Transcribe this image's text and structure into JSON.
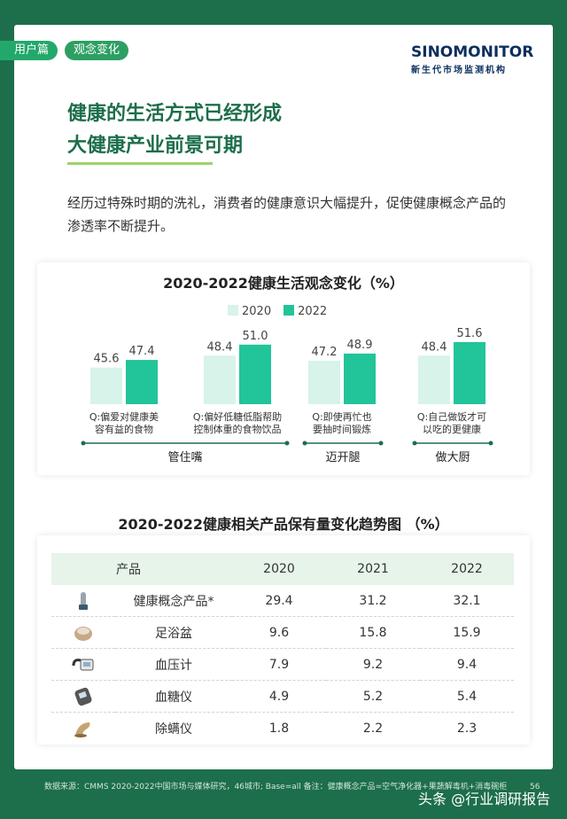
{
  "tags": [
    "用户篇",
    "观念变化"
  ],
  "logo": {
    "name": "SINOMONITOR",
    "subtitle": "新生代市场监测机构"
  },
  "title": {
    "line1": "健康的生活方式已经形成",
    "line2": "大健康产业前景可期"
  },
  "intro": "经历过特殊时期的洗礼，消费者的健康意识大幅提升，促使健康概念产品的渗透率不断提升。",
  "chart_data": {
    "type": "bar",
    "title": "2020-2022健康生活观念变化（%）",
    "categories": [
      "Q:偏爱对健康美容有益的食物",
      "Q:偏好低糖低脂帮助控制体重的食物饮品",
      "Q:即使再忙也要抽时间锻炼",
      "Q:自己做饭才可以吃的更健康"
    ],
    "category_lines": [
      [
        "Q:偏爱对健康美",
        "容有益的食物"
      ],
      [
        "Q:偏好低糖低脂帮助",
        "控制体重的食物饮品"
      ],
      [
        "Q:即使再忙也",
        "要抽时间锻炼"
      ],
      [
        "Q:自己做饭才可",
        "以吃的更健康"
      ]
    ],
    "series": [
      {
        "name": "2020",
        "values": [
          45.6,
          48.4,
          47.2,
          48.4
        ],
        "color": "#d7f3ea"
      },
      {
        "name": "2022",
        "values": [
          47.4,
          51.0,
          48.9,
          51.6
        ],
        "color": "#22c49a"
      }
    ],
    "value_labels": [
      [
        "45.6",
        "48.4",
        "47.2",
        "48.4"
      ],
      [
        "47.4",
        "51.0",
        "48.9",
        "51.6"
      ]
    ],
    "groups": [
      {
        "label": "管住嘴",
        "span": [
          0,
          1
        ]
      },
      {
        "label": "迈开腿",
        "span": [
          2,
          2
        ]
      },
      {
        "label": "做大厨",
        "span": [
          3,
          3
        ]
      }
    ]
  },
  "table": {
    "title": "2020-2022健康相关产品保有量变化趋势图 （%）",
    "headers": [
      "产品",
      "2020",
      "2021",
      "2022"
    ],
    "rows": [
      {
        "icon": "air-purifier-icon",
        "name": "健康概念产品*",
        "v": [
          "29.4",
          "31.2",
          "32.1"
        ]
      },
      {
        "icon": "foot-bath-icon",
        "name": "足浴盆",
        "v": [
          "9.6",
          "15.8",
          "15.9"
        ]
      },
      {
        "icon": "blood-pressure-monitor-icon",
        "name": "血压计",
        "v": [
          "7.9",
          "9.2",
          "9.4"
        ]
      },
      {
        "icon": "glucose-meter-icon",
        "name": "血糖仪",
        "v": [
          "4.9",
          "5.2",
          "5.4"
        ]
      },
      {
        "icon": "mite-remover-icon",
        "name": "除螨仪",
        "v": [
          "1.8",
          "2.2",
          "2.3"
        ]
      }
    ]
  },
  "footer": "数据来源：CMMS 2020-2022中国市场与媒体研究，46城市; Base=all 备注：健康概念产品=空气净化器+果蔬解毒机+消毒碗柜",
  "page_number": "56",
  "watermark": "头条 @行业调研报告"
}
